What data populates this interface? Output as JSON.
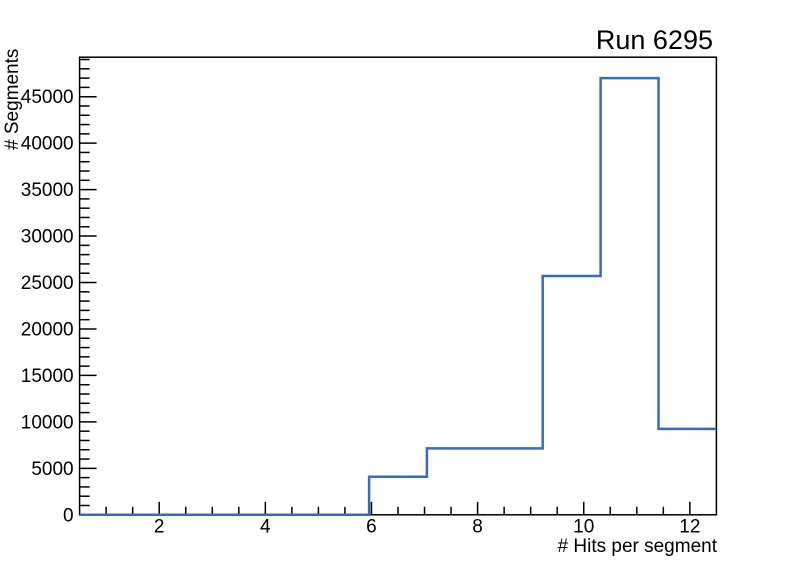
{
  "chart_data": {
    "type": "histogram",
    "title": "Run 6295",
    "xlabel": "# Hits per segment",
    "ylabel": "# Segments",
    "xlim": [
      0.5,
      12.5
    ],
    "ylim": [
      0,
      49250
    ],
    "bin_edges": [
      0.5,
      1.591,
      2.682,
      3.773,
      4.864,
      5.955,
      7.045,
      8.136,
      9.227,
      10.318,
      11.409,
      12.5
    ],
    "counts": [
      0,
      0,
      0,
      0,
      0,
      4100,
      7150,
      7150,
      25700,
      47000,
      9250
    ],
    "x_major_ticks": [
      2,
      4,
      6,
      8,
      10,
      12
    ],
    "x_minor_tick_step": 0.5,
    "y_major_ticks": [
      0,
      5000,
      10000,
      15000,
      20000,
      25000,
      30000,
      35000,
      40000,
      45000
    ],
    "y_minor_tick_step": 1000,
    "grid": false,
    "legend": "none",
    "line_color": "#3b6abd",
    "frame_color": "#000000",
    "text_color": "#000000",
    "background_color": "#ffffff"
  }
}
